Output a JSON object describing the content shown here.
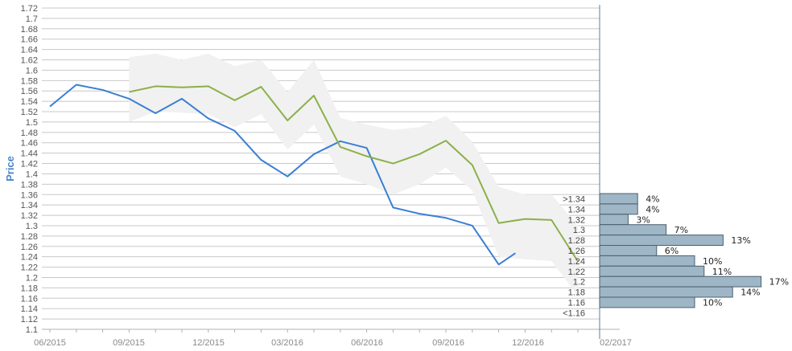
{
  "chart_data": {
    "type": "line",
    "ylabel": "Price",
    "ylim": [
      1.1,
      1.72
    ],
    "y_step": 0.02,
    "x_tick_labels": [
      "06/2015",
      "09/2015",
      "12/2015",
      "03/2016",
      "06/2016",
      "09/2016",
      "12/2016",
      "02/2017"
    ],
    "grid": true,
    "series": [
      {
        "color": "#3a7fd5",
        "x": [
          "2015-06",
          "2015-07",
          "2015-08",
          "2015-09",
          "2015-10",
          "2015-11",
          "2015-12",
          "2016-01",
          "2016-02",
          "2016-03",
          "2016-04",
          "2016-05",
          "2016-06",
          "2016-07",
          "2016-08",
          "2016-09",
          "2016-10",
          "2016-11",
          "2016-11-20"
        ],
        "values": [
          1.53,
          1.572,
          1.562,
          1.545,
          1.517,
          1.545,
          1.507,
          1.483,
          1.427,
          1.395,
          1.438,
          1.463,
          1.45,
          1.335,
          1.323,
          1.315,
          1.3,
          1.225,
          1.247
        ]
      },
      {
        "color": "#8bb04a",
        "x": [
          "2015-09",
          "2015-10",
          "2015-11",
          "2015-12",
          "2016-01",
          "2016-02",
          "2016-03",
          "2016-04",
          "2016-05",
          "2016-06",
          "2016-07",
          "2016-08",
          "2016-09",
          "2016-10",
          "2016-11",
          "2016-12",
          "2017-01",
          "2017-02"
        ],
        "values": [
          1.558,
          1.569,
          1.567,
          1.569,
          1.542,
          1.568,
          1.503,
          1.551,
          1.452,
          1.434,
          1.42,
          1.438,
          1.464,
          1.417,
          1.305,
          1.313,
          1.311,
          1.231
        ]
      }
    ],
    "band": {
      "color": "#f1f1f1",
      "x": [
        "2015-09",
        "2015-10",
        "2015-11",
        "2015-12",
        "2016-01",
        "2016-02",
        "2016-03",
        "2016-04",
        "2016-05",
        "2016-06",
        "2016-07",
        "2016-08",
        "2016-09",
        "2016-10",
        "2016-11",
        "2016-12",
        "2017-01",
        "2017-02"
      ],
      "upper": [
        1.625,
        1.632,
        1.62,
        1.632,
        1.608,
        1.62,
        1.558,
        1.62,
        1.508,
        1.495,
        1.485,
        1.49,
        1.512,
        1.462,
        1.375,
        1.36,
        1.36,
        1.3
      ],
      "lower": [
        1.5,
        1.52,
        1.518,
        1.515,
        1.49,
        1.515,
        1.447,
        1.495,
        1.395,
        1.38,
        1.36,
        1.38,
        1.412,
        1.368,
        1.24,
        1.235,
        1.232,
        1.165
      ]
    },
    "distribution": {
      "color": "#9fb6c6",
      "bins": [
        {
          "label": ">1.34",
          "pct": 4,
          "pct_label": "4%"
        },
        {
          "label": "1.34",
          "pct": 4,
          "pct_label": "4%"
        },
        {
          "label": "1.32",
          "pct": 3,
          "pct_label": "3%"
        },
        {
          "label": "1.3",
          "pct": 7,
          "pct_label": "7%"
        },
        {
          "label": "1.28",
          "pct": 13,
          "pct_label": "13%"
        },
        {
          "label": "1.26",
          "pct": 6,
          "pct_label": "6%"
        },
        {
          "label": "1.24",
          "pct": 10,
          "pct_label": "10%"
        },
        {
          "label": "1.22",
          "pct": 11,
          "pct_label": "11%"
        },
        {
          "label": "1.2",
          "pct": 17,
          "pct_label": "17%"
        },
        {
          "label": "1.18",
          "pct": 14,
          "pct_label": "14%"
        },
        {
          "label": "1.16",
          "pct": 10,
          "pct_label": "10%"
        },
        {
          "label": "<1.16",
          "pct": 0,
          "pct_label": ""
        }
      ]
    }
  }
}
